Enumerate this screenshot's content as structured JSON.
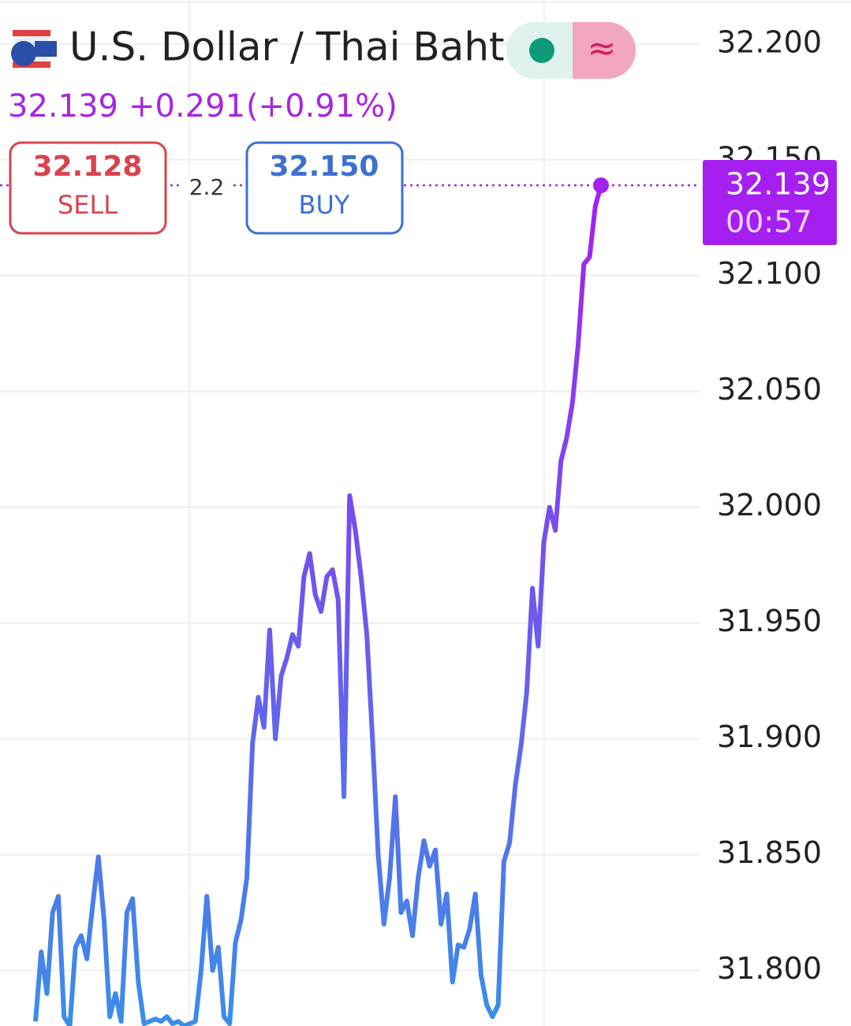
{
  "chart_data": {
    "type": "line",
    "title": "U.S. Dollar / Thai Baht",
    "status_icon": "≈",
    "price": 32.139,
    "change": "+0.291",
    "change_percent": "(+0.91%)",
    "sell": {
      "price": 32.128,
      "label": "SELL"
    },
    "buy": {
      "price": "32.150",
      "label": "BUY"
    },
    "spread": "2.2",
    "countdown": "00:57",
    "color": "#3b8ee8",
    "color_top": "#a51ff0",
    "price_color": "#a726e0",
    "grid": true,
    "ylim": [
      31.776,
      32.219
    ],
    "yticks": [
      {
        "value": 31.8,
        "label": "31.800"
      },
      {
        "value": 31.85,
        "label": "31.850"
      },
      {
        "value": 31.9,
        "label": "31.900"
      },
      {
        "value": 31.95,
        "label": "31.950"
      },
      {
        "value": 32.0,
        "label": "32.000"
      },
      {
        "value": 32.05,
        "label": "32.050"
      },
      {
        "value": 32.1,
        "label": "32.100"
      },
      {
        "value": 32.15,
        "label": "32.150"
      },
      {
        "value": 32.2,
        "label": "32.200"
      }
    ],
    "values": [
      31.778,
      31.808,
      31.79,
      31.825,
      31.832,
      31.78,
      31.776,
      31.81,
      31.815,
      31.805,
      31.828,
      31.849,
      31.822,
      31.78,
      31.79,
      31.778,
      31.825,
      31.831,
      31.795,
      31.777,
      31.778,
      31.779,
      31.778,
      31.78,
      31.777,
      31.778,
      31.776,
      31.777,
      31.778,
      31.8,
      31.832,
      31.8,
      31.81,
      31.78,
      31.777,
      31.812,
      31.822,
      31.84,
      31.898,
      31.918,
      31.905,
      31.947,
      31.9,
      31.927,
      31.935,
      31.945,
      31.94,
      31.97,
      31.98,
      31.962,
      31.955,
      31.97,
      31.973,
      31.96,
      31.875,
      32.005,
      31.99,
      31.97,
      31.945,
      31.9,
      31.85,
      31.82,
      31.84,
      31.875,
      31.825,
      31.83,
      31.815,
      31.84,
      31.856,
      31.845,
      31.852,
      31.82,
      31.833,
      31.795,
      31.811,
      31.81,
      31.818,
      31.833,
      31.798,
      31.785,
      31.78,
      31.785,
      31.847,
      31.855,
      31.88,
      31.897,
      31.92,
      31.965,
      31.94,
      31.985,
      32.0,
      31.99,
      32.02,
      32.03,
      32.045,
      32.07,
      32.105,
      32.108,
      32.13,
      32.139
    ]
  }
}
